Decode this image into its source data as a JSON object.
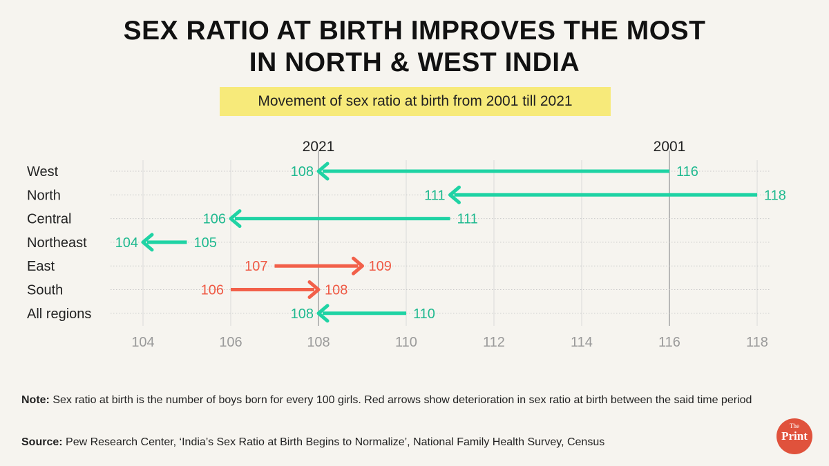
{
  "title": {
    "line1": "SEX RATIO AT BIRTH IMPROVES THE MOST",
    "line2": "IN NORTH & WEST INDIA"
  },
  "subtitle": "Movement of sex ratio at birth from 2001 till 2021",
  "note": {
    "label": "Note:",
    "text": " Sex ratio at birth is the number of boys born for every 100 girls. Red arrows show deterioration in sex ratio at birth between the said time period"
  },
  "source": {
    "label": "Source:",
    "text": " Pew Research Center, ‘India’s Sex Ratio at Birth Begins to Normalize’, National Family Health Survey, Census"
  },
  "logo": {
    "the": "The",
    "print": "Print"
  },
  "colors": {
    "improve": "#1fd3a4",
    "worse": "#f2604a",
    "improveText": "#1fb98f",
    "worseText": "#ef5a45"
  },
  "chart_data": {
    "type": "arrow",
    "title": "Movement of sex ratio at birth from 2001 till 2021",
    "series_labels": {
      "start": "2001",
      "end": "2021"
    },
    "reference_lines": [
      {
        "label": "2021",
        "value": 108
      },
      {
        "label": "2001",
        "value": 116
      }
    ],
    "xlim": [
      104,
      118
    ],
    "xticks": [
      104,
      106,
      108,
      110,
      112,
      114,
      116,
      118
    ],
    "regions": [
      {
        "name": "West",
        "from": 116,
        "to": 108
      },
      {
        "name": "North",
        "from": 118,
        "to": 111
      },
      {
        "name": "Central",
        "from": 111,
        "to": 106
      },
      {
        "name": "Northeast",
        "from": 105,
        "to": 104
      },
      {
        "name": "East",
        "from": 107,
        "to": 109
      },
      {
        "name": "South",
        "from": 106,
        "to": 108
      },
      {
        "name": "All regions",
        "from": 110,
        "to": 108
      }
    ]
  }
}
